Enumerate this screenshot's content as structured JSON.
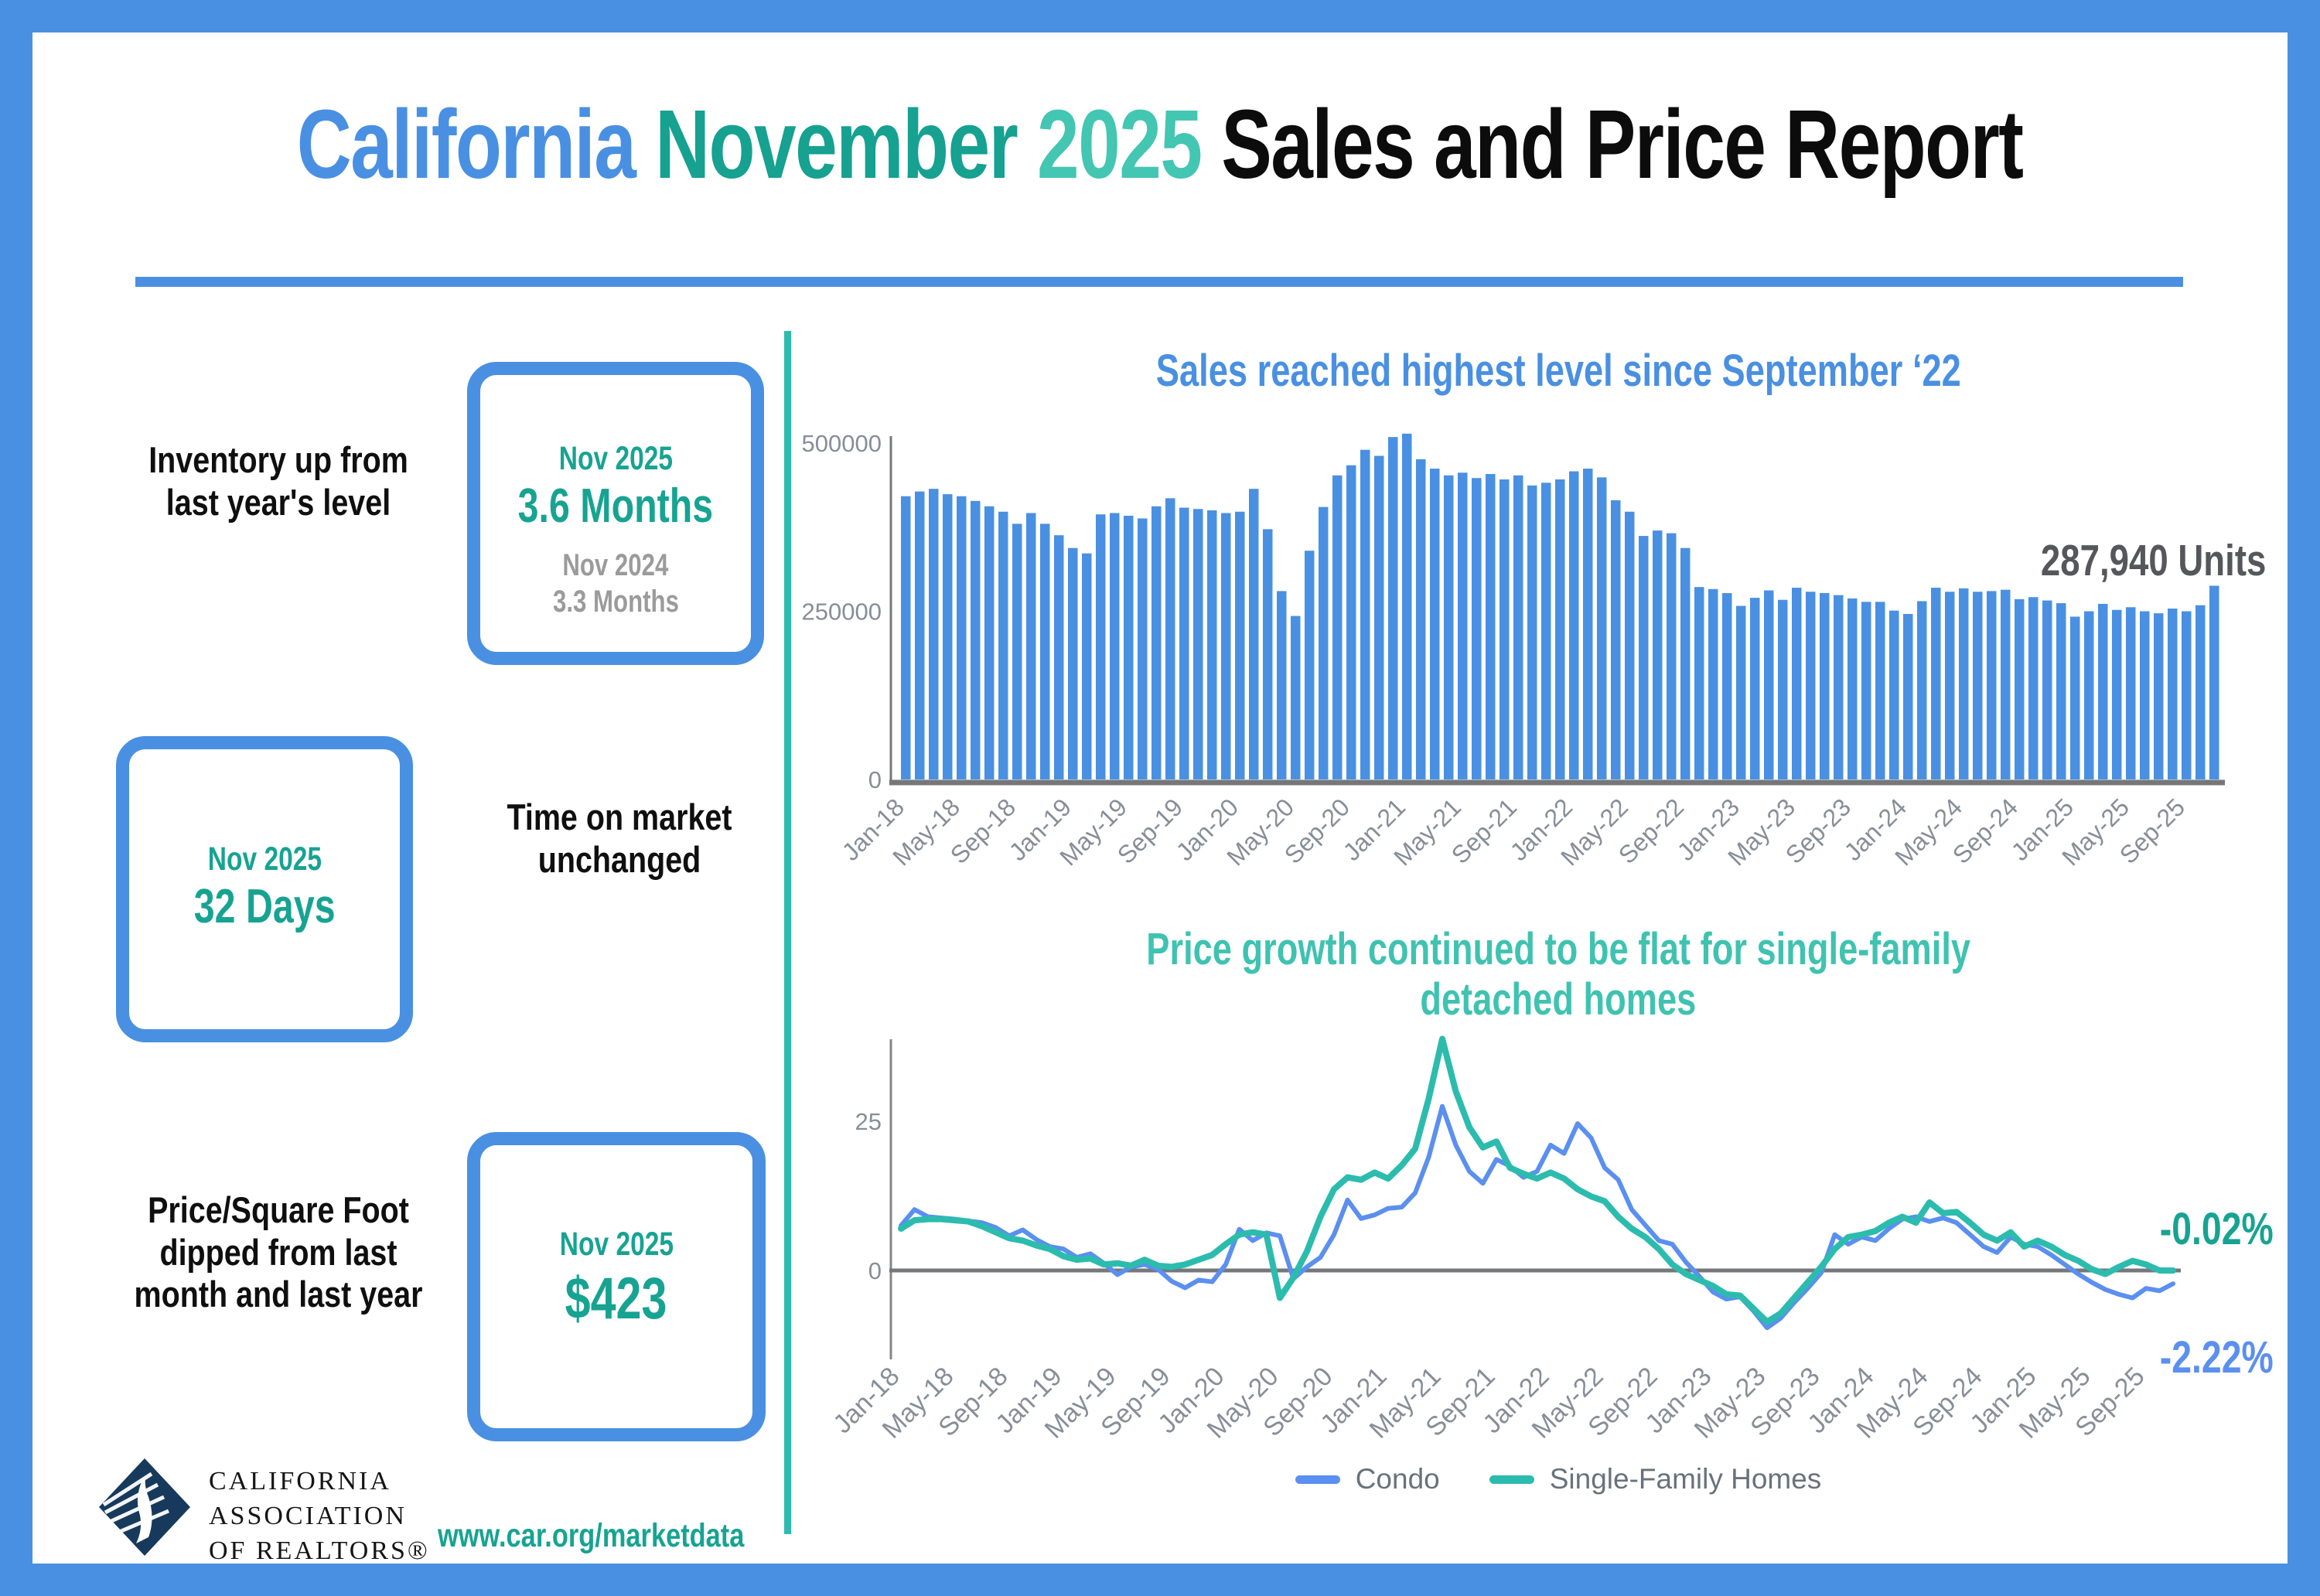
{
  "title": {
    "california": "California",
    "month": "November",
    "year": "2025",
    "rest": "Sales and Price Report"
  },
  "stats": [
    {
      "label": "Inventory up from last year's level",
      "box": {
        "period": "Nov 2025",
        "value": "3.6 Months",
        "prev_period": "Nov 2024",
        "prev_value": "3.3 Months"
      }
    },
    {
      "label": "Time on market unchanged",
      "box": {
        "period": "Nov 2025",
        "value": "32 Days"
      }
    },
    {
      "label": "Price/Square Foot dipped from last month and last year",
      "box": {
        "period": "Nov 2025",
        "value": "$423"
      }
    }
  ],
  "footer": {
    "logo_lines": [
      "CALIFORNIA",
      "ASSOCIATION",
      "OF REALTORS®"
    ],
    "url": "www.car.org/marketdata"
  },
  "colors": {
    "blue": "#4a90e2",
    "teal_dark": "#17a392",
    "teal_light": "#3fc3b0",
    "condo_line": "#5b8ff0",
    "sfh_line": "#2cbcae",
    "axis_gray": "#76777b",
    "label_gray": "#878e98",
    "annotation_gray": "#56575b",
    "logo_navy": "#17395c"
  },
  "chart_data": [
    {
      "type": "bar",
      "title": "Sales reached highest level since September ‘22",
      "annotation": "287,940 Units",
      "bar_color": "#4a90e2",
      "y_ticks": [
        0,
        250000,
        500000
      ],
      "ylim": [
        0,
        530000
      ],
      "months_start": "Jan-18",
      "tick_every": 4,
      "x_tick_labels": [
        "Jan-18",
        "May-18",
        "Sep-18",
        "Jan-19",
        "May-19",
        "Sep-19",
        "Jan-20",
        "May-20",
        "Sep-20",
        "Jan-21",
        "May-21",
        "Sep-21",
        "Jan-22",
        "May-22",
        "Sep-22",
        "Jan-23",
        "May-23",
        "Sep-23",
        "Jan-24",
        "May-24",
        "Sep-24",
        "Jan-25",
        "May-25",
        "Sep-25"
      ],
      "values": [
        421000,
        428000,
        432000,
        424000,
        421000,
        414000,
        406000,
        398000,
        380000,
        396000,
        380000,
        363000,
        344000,
        336000,
        394000,
        396000,
        392000,
        388000,
        406000,
        418000,
        404000,
        402000,
        400000,
        396000,
        398000,
        432000,
        372000,
        280000,
        243000,
        340000,
        405000,
        452000,
        467000,
        490000,
        481000,
        509000,
        514000,
        476000,
        462000,
        452000,
        456000,
        448000,
        454000,
        446000,
        452000,
        437000,
        441000,
        446000,
        458000,
        462000,
        449000,
        415000,
        398000,
        362000,
        370000,
        366000,
        344000,
        286000,
        283000,
        277000,
        258000,
        270000,
        281000,
        267000,
        285000,
        279000,
        277000,
        274000,
        269000,
        264000,
        264000,
        251000,
        246000,
        265000,
        285000,
        279000,
        284000,
        279000,
        280000,
        282000,
        268000,
        271000,
        266000,
        262000,
        242000,
        250000,
        261000,
        252000,
        256000,
        250000,
        247000,
        254000,
        250000,
        259000,
        287940
      ]
    },
    {
      "type": "line",
      "title_lines": [
        "Price growth continued to be flat for single-family",
        "detached homes"
      ],
      "y_ticks": [
        25,
        0
      ],
      "months_start": "Jan-18",
      "tick_every": 4,
      "x_tick_labels": [
        "Jan-18",
        "May-18",
        "Sep-18",
        "Jan-19",
        "May-19",
        "Sep-19",
        "Jan-20",
        "May-20",
        "Sep-20",
        "Jan-21",
        "May-21",
        "Sep-21",
        "Jan-22",
        "May-22",
        "Sep-22",
        "Jan-23",
        "May-23",
        "Sep-23",
        "Jan-24",
        "May-24",
        "Sep-24",
        "Jan-25",
        "May-25",
        "Sep-25"
      ],
      "legend_position": "bottom",
      "series": [
        {
          "name": "Condo",
          "color": "#5b8ff0",
          "end_label": "-2.22%",
          "values": [
            7.5,
            10.2,
            9.0,
            8.8,
            8.6,
            8.3,
            8.0,
            7.2,
            5.8,
            6.8,
            5.2,
            4.0,
            3.6,
            2.2,
            2.8,
            1.2,
            -0.7,
            0.6,
            1.0,
            0.2,
            -1.8,
            -2.9,
            -1.6,
            -1.9,
            1.0,
            6.9,
            5.0,
            6.3,
            5.8,
            -1.4,
            0.6,
            2.2,
            6.0,
            11.8,
            8.7,
            9.3,
            10.4,
            10.6,
            13.0,
            19.0,
            27.5,
            21.0,
            16.6,
            14.6,
            18.6,
            17.5,
            15.6,
            16.6,
            21.0,
            19.6,
            24.6,
            22.2,
            17.2,
            15.2,
            10.2,
            7.6,
            5.0,
            4.4,
            1.4,
            -1.0,
            -3.6,
            -4.8,
            -4.4,
            -6.8,
            -9.6,
            -8.0,
            -5.4,
            -3.0,
            -0.4,
            6.0,
            4.4,
            5.6,
            5.0,
            7.0,
            8.6,
            9.0,
            8.2,
            8.8,
            8.0,
            6.0,
            4.0,
            3.0,
            5.6,
            4.4,
            4.0,
            2.6,
            1.0,
            -0.6,
            -2.0,
            -3.2,
            -4.0,
            -4.6,
            -3.0,
            -3.4,
            -2.22
          ]
        },
        {
          "name": "Single-Family Homes",
          "color": "#2cbcae",
          "end_label": "-0.02%",
          "values": [
            7.0,
            8.4,
            8.6,
            8.6,
            8.4,
            8.2,
            7.4,
            6.4,
            5.4,
            5.0,
            4.2,
            3.6,
            2.4,
            1.8,
            2.0,
            1.0,
            1.2,
            0.8,
            1.8,
            0.8,
            0.6,
            1.0,
            1.8,
            2.6,
            4.4,
            6.0,
            6.4,
            6.0,
            -4.6,
            -1.2,
            3.2,
            9.0,
            13.6,
            15.6,
            15.2,
            16.4,
            15.4,
            17.6,
            20.4,
            28.8,
            38.8,
            30.0,
            24.0,
            20.6,
            21.6,
            17.2,
            16.2,
            15.4,
            16.4,
            15.4,
            13.6,
            12.4,
            11.6,
            9.0,
            7.0,
            5.6,
            3.6,
            1.0,
            -0.6,
            -1.6,
            -2.6,
            -4.0,
            -4.2,
            -6.4,
            -8.6,
            -7.2,
            -4.6,
            -2.0,
            0.6,
            3.6,
            5.6,
            6.0,
            6.6,
            8.0,
            9.0,
            8.0,
            11.4,
            9.6,
            9.8,
            8.0,
            6.0,
            5.0,
            6.4,
            4.0,
            5.0,
            4.0,
            2.6,
            1.6,
            0.2,
            -0.6,
            0.6,
            1.6,
            1.0,
            0.0,
            -0.02
          ]
        }
      ]
    }
  ]
}
